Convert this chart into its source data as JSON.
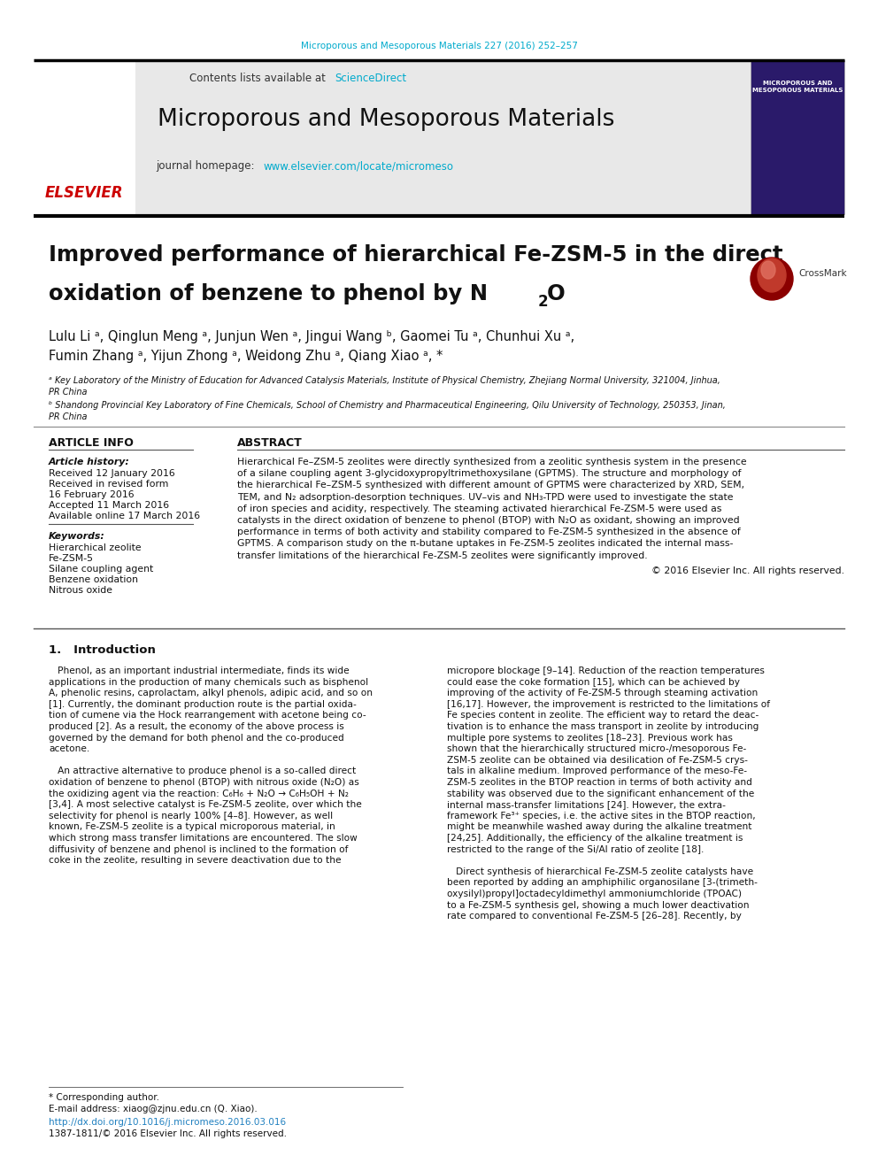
{
  "page_bg": "#ffffff",
  "top_journal_ref": "Microporous and Mesoporous Materials 227 (2016) 252–257",
  "top_journal_ref_color": "#00aacc",
  "journal_name": "Microporous and Mesoporous Materials",
  "journal_homepage_label": "journal homepage:",
  "journal_homepage_url": "www.elsevier.com/locate/micromeso",
  "journal_homepage_color": "#00aacc",
  "contents_label": "Contents lists available at",
  "sciencedirect_label": "ScienceDirect",
  "sciencedirect_color": "#00aacc",
  "header_bg": "#e8e8e8",
  "paper_title_line1": "Improved performance of hierarchical Fe-ZSM-5 in the direct",
  "paper_title_line2": "oxidation of benzene to phenol by N",
  "paper_title_sub": "2",
  "paper_title_end": "O",
  "authors": "Lulu Li ᵃ, Qinglun Meng ᵃ, Junjun Wen ᵃ, Jingui Wang ᵇ, Gaomei Tu ᵃ, Chunhui Xu ᵃ,",
  "authors2": "Fumin Zhang ᵃ, Yijun Zhong ᵃ, Weidong Zhu ᵃ, Qiang Xiao ᵃ, *",
  "affil_a": "ᵃ Key Laboratory of the Ministry of Education for Advanced Catalysis Materials, Institute of Physical Chemistry, Zhejiang Normal University, 321004, Jinhua,",
  "affil_a2": "PR China",
  "affil_b": "ᵇ Shandong Provincial Key Laboratory of Fine Chemicals, School of Chemistry and Pharmaceutical Engineering, Qilu University of Technology, 250353, Jinan,",
  "affil_b2": "PR China",
  "article_info_header": "ARTICLE INFO",
  "abstract_header": "ABSTRACT",
  "article_history_label": "Article history:",
  "received1": "Received 12 January 2016",
  "received2": "Received in revised form",
  "received2b": "16 February 2016",
  "accepted": "Accepted 11 March 2016",
  "available": "Available online 17 March 2016",
  "keywords_label": "Keywords:",
  "kw1": "Hierarchical zeolite",
  "kw2": "Fe-ZSM-5",
  "kw3": "Silane coupling agent",
  "kw4": "Benzene oxidation",
  "kw5": "Nitrous oxide",
  "copyright": "© 2016 Elsevier Inc. All rights reserved.",
  "intro_header": "1.   Introduction",
  "footer_corresponding": "* Corresponding author.",
  "footer_email": "E-mail address: xiaog@zjnu.edu.cn (Q. Xiao).",
  "footer_doi": "http://dx.doi.org/10.1016/j.micromeso.2016.03.016",
  "footer_issn": "1387-1811/© 2016 Elsevier Inc. All rights reserved."
}
